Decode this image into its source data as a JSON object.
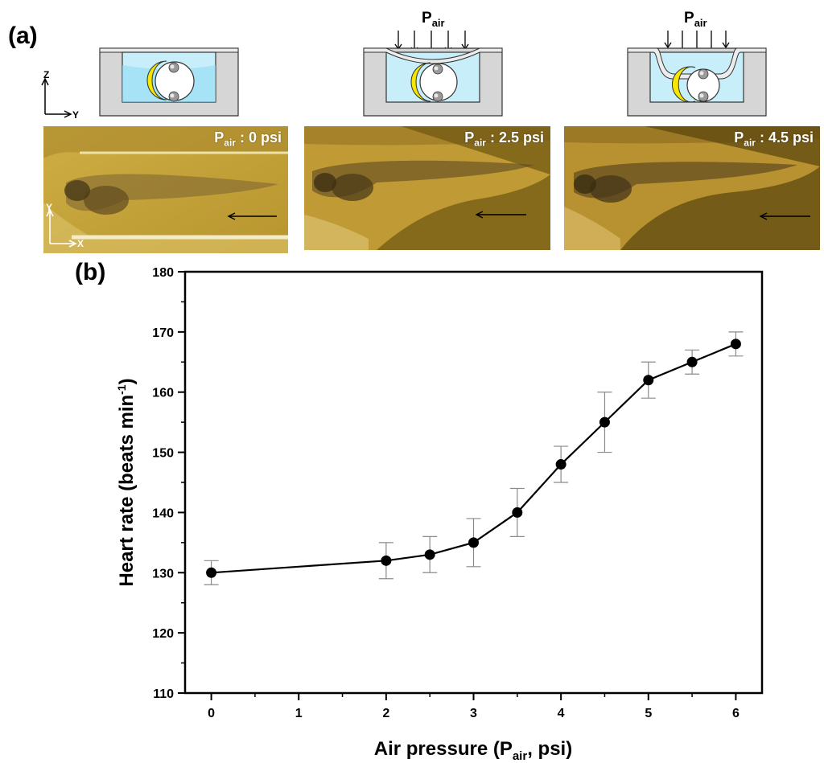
{
  "panels": {
    "a_label": "(a)",
    "b_label": "(b)"
  },
  "schematics": {
    "pair_main": "P",
    "pair_sub": "air",
    "axis_z": "Z",
    "axis_y": "Y"
  },
  "photos": [
    {
      "label_main": "P",
      "label_sub": "air",
      "label_value": " : 0 psi"
    },
    {
      "label_main": "P",
      "label_sub": "air",
      "label_value": " : 2.5 psi"
    },
    {
      "label_main": "P",
      "label_sub": "air",
      "label_value": " : 4.5 psi"
    }
  ],
  "photo_axes": {
    "y": "Y",
    "x": "X"
  },
  "colors": {
    "chamber_fill": "#c8eef9",
    "chamber_wall": "#d6d6d6",
    "yolk": "#f6e600",
    "photo_bg": "#c9a33e",
    "photo_dark": "#6e5512"
  },
  "chart_data": {
    "type": "line",
    "title": "",
    "xlabel_main": "Air pressure (P",
    "xlabel_sub": "air",
    "xlabel_end": ", psi)",
    "ylabel_main": "Heart rate (beats min",
    "ylabel_sup": "-1",
    "ylabel_end": ")",
    "xlim": [
      -0.3,
      6.3
    ],
    "ylim": [
      110,
      180
    ],
    "xticks": [
      0,
      1,
      2,
      3,
      4,
      5,
      6
    ],
    "xtick_labels": [
      "0",
      "1",
      "2",
      "3",
      "4",
      "5",
      "6"
    ],
    "yticks": [
      110,
      120,
      130,
      140,
      150,
      160,
      170,
      180
    ],
    "ytick_labels": [
      "110",
      "120",
      "130",
      "140",
      "150",
      "160",
      "170",
      "180"
    ],
    "series": [
      {
        "name": "Heart rate",
        "x": [
          0,
          2,
          2.5,
          3,
          3.5,
          4,
          4.5,
          5,
          5.5,
          6
        ],
        "y": [
          130,
          132,
          133,
          135,
          140,
          148,
          155,
          162,
          165,
          168
        ],
        "err": [
          2,
          3,
          3,
          4,
          4,
          3,
          5,
          3,
          2,
          2
        ]
      }
    ]
  }
}
